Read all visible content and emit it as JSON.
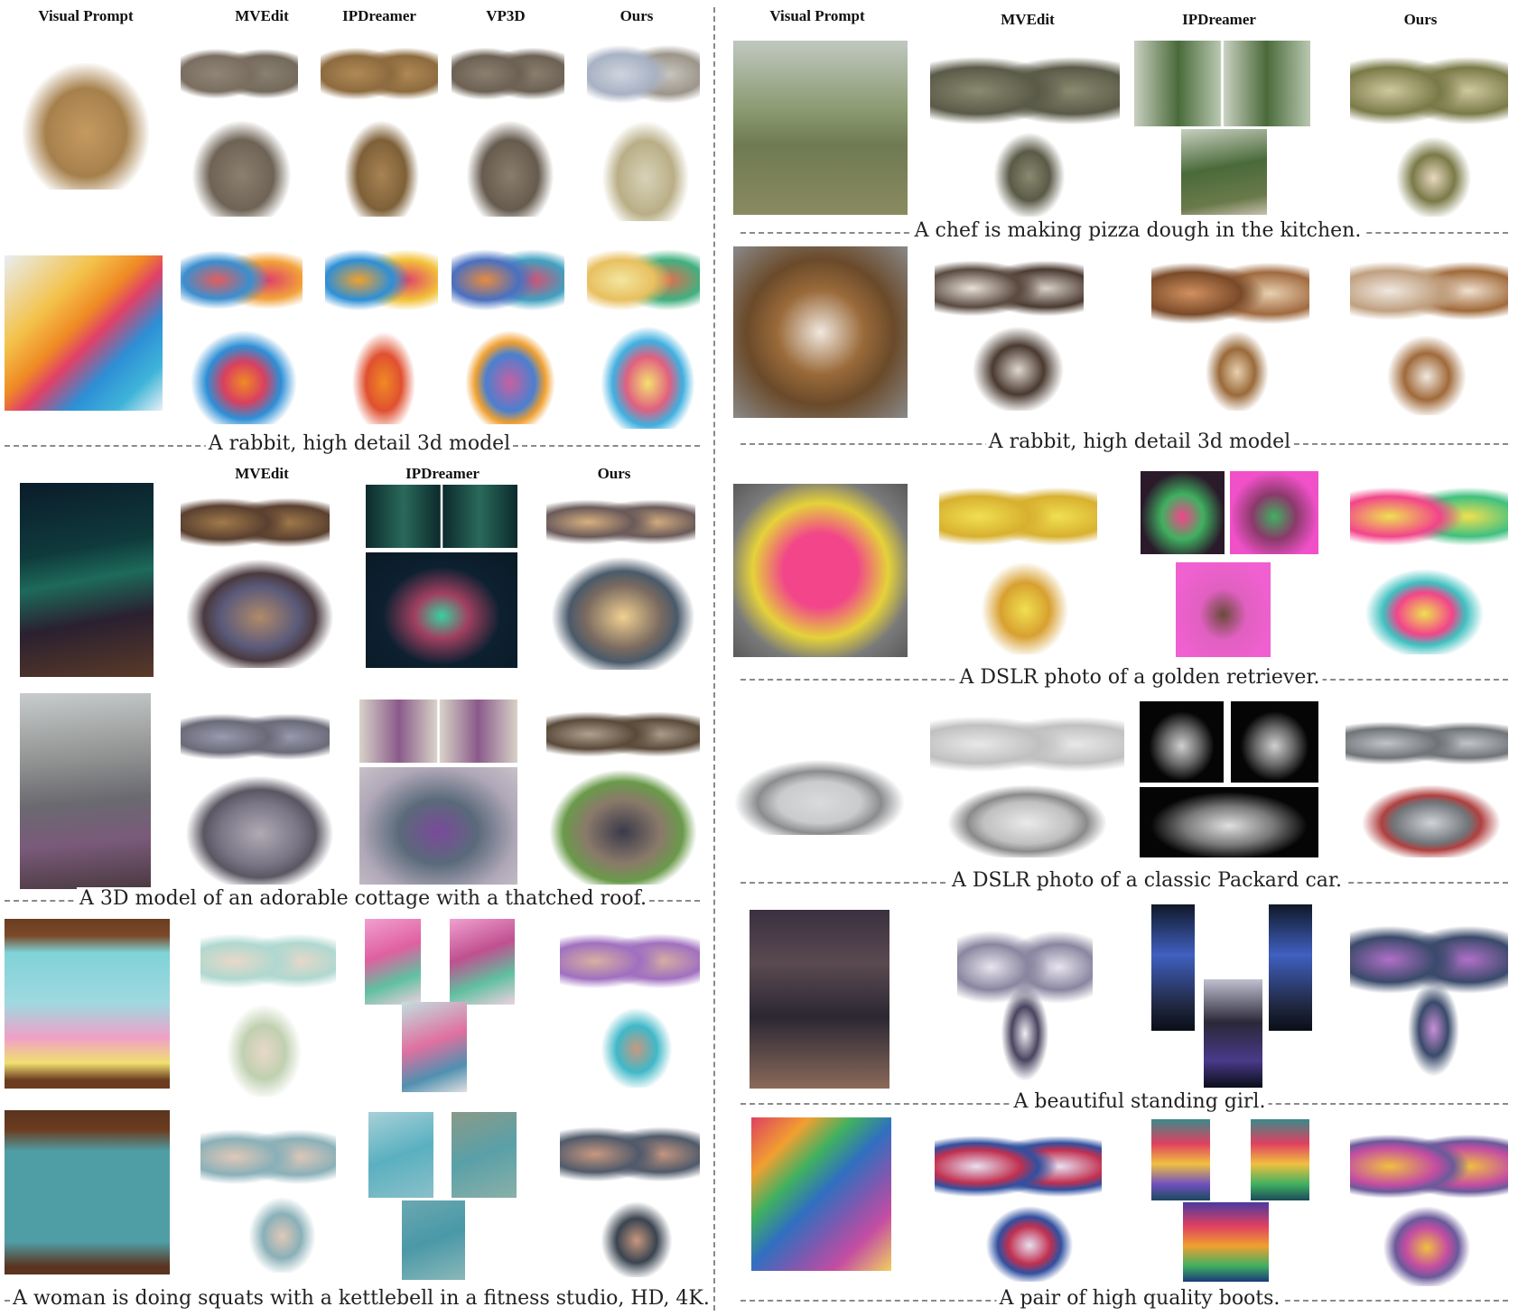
{
  "left_panel": {
    "headers_top": [
      "Visual Prompt",
      "MVEdit",
      "IPDreamer",
      "VP3D",
      "Ours"
    ],
    "headers_mid": [
      "MVEdit",
      "IPDreamer",
      "Ours"
    ],
    "captions": [
      "A  rabbit, high detail 3d model",
      "A 3D model of an adorable cottage with a thatched roof.",
      "A woman is doing squats with a kettlebell in a fitness studio, HD, 4K."
    ]
  },
  "right_panel": {
    "headers": [
      "Visual Prompt",
      "MVEdit",
      "IPDreamer",
      "Ours"
    ],
    "captions": [
      "A chef is making pizza dough in the kitchen.",
      "A  rabbit, high detail 3d model",
      "A DSLR photo of a golden retriever.",
      "A DSLR photo of a classic Packard car.",
      "A beautiful standing girl.",
      "A pair of high quality boots."
    ]
  },
  "colors": {
    "divider": "#8a8a8a",
    "leopard": "#b08a55",
    "rabbit_gray": "#8c7f70",
    "paint_orange": "#f08a24",
    "paint_blue": "#2d8fd6",
    "soldier_green": "#6f7a52",
    "dog_brown": "#9a6a3a",
    "night_teal": "#0f3a3c",
    "cottage_brown": "#8a6a48",
    "misty_gray": "#8f9090",
    "cat_pink": "#f2458a",
    "cat_yellow": "#e5d23a",
    "car_silver": "#c9cbcd",
    "tshirt_pastel": "#7fd3d8",
    "tshirt_teal": "#4f9ea6",
    "wood_brown": "#6b3c1f",
    "girl_dark": "#2b2733",
    "boots_rainbow": "#c44da2"
  }
}
